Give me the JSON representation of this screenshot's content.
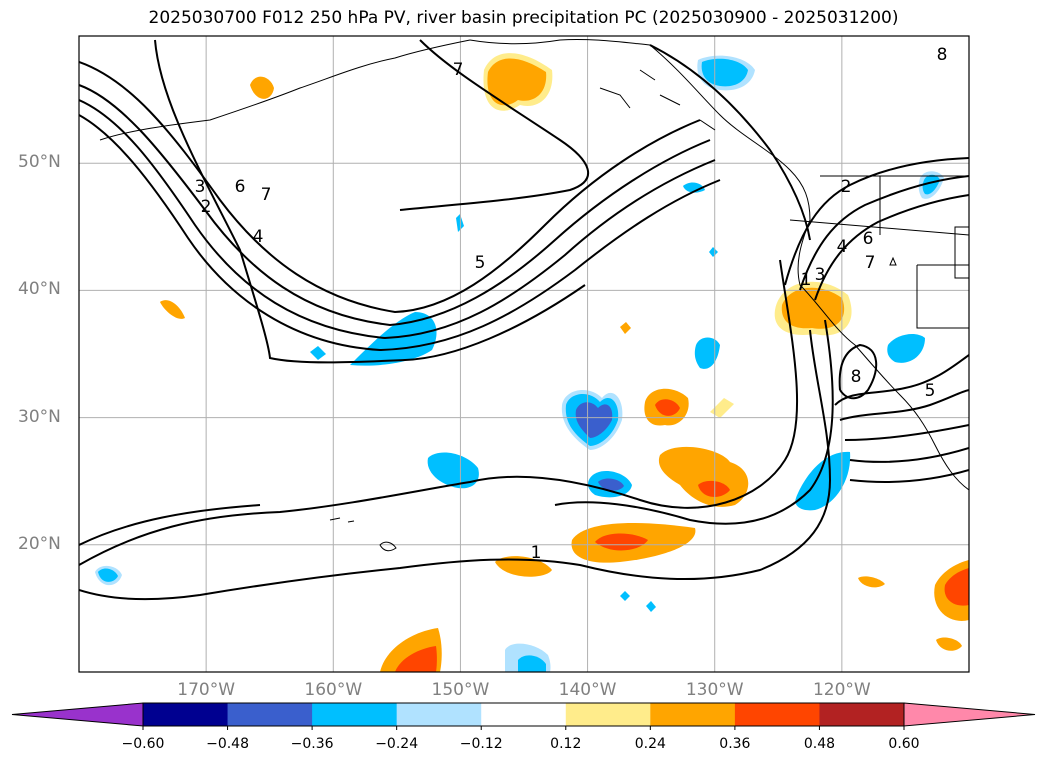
{
  "title": "2025030700 F012 250 hPa PV, river basin precipitation PC (2025030900 - 2025031200)",
  "map": {
    "lon_range": [
      -180,
      -110
    ],
    "lat_range": [
      10,
      60
    ],
    "grid": true,
    "latitudes": [
      {
        "value": 50,
        "label": "50°N"
      },
      {
        "value": 40,
        "label": "40°N"
      },
      {
        "value": 30,
        "label": "30°N"
      },
      {
        "value": 20,
        "label": "20°N"
      }
    ],
    "longitudes": [
      {
        "value": -170,
        "label": "170°W"
      },
      {
        "value": -160,
        "label": "160°W"
      },
      {
        "value": -150,
        "label": "150°W"
      },
      {
        "value": -140,
        "label": "140°W"
      },
      {
        "value": -130,
        "label": "130°W"
      },
      {
        "value": -120,
        "label": "120°W"
      }
    ],
    "pv_contour_labels": [
      "7",
      "3",
      "2",
      "6",
      "7",
      "4",
      "5",
      "1",
      "1",
      "2",
      "4",
      "6",
      "7",
      "3",
      "8",
      "5",
      "8"
    ]
  },
  "colorbar": {
    "extend": "both",
    "under_color": "#9932cc",
    "over_color": "#ff88aa",
    "colors": [
      "#000090",
      "#3a5fcd",
      "#00bfff",
      "#b0e2ff",
      "#ffffff",
      "#ffec8b",
      "#ffa500",
      "#ff4500",
      "#b22222"
    ],
    "ticks": [
      "−0.60",
      "−0.48",
      "−0.36",
      "−0.24",
      "−0.12",
      "0.12",
      "0.24",
      "0.36",
      "0.48",
      "0.60"
    ]
  }
}
